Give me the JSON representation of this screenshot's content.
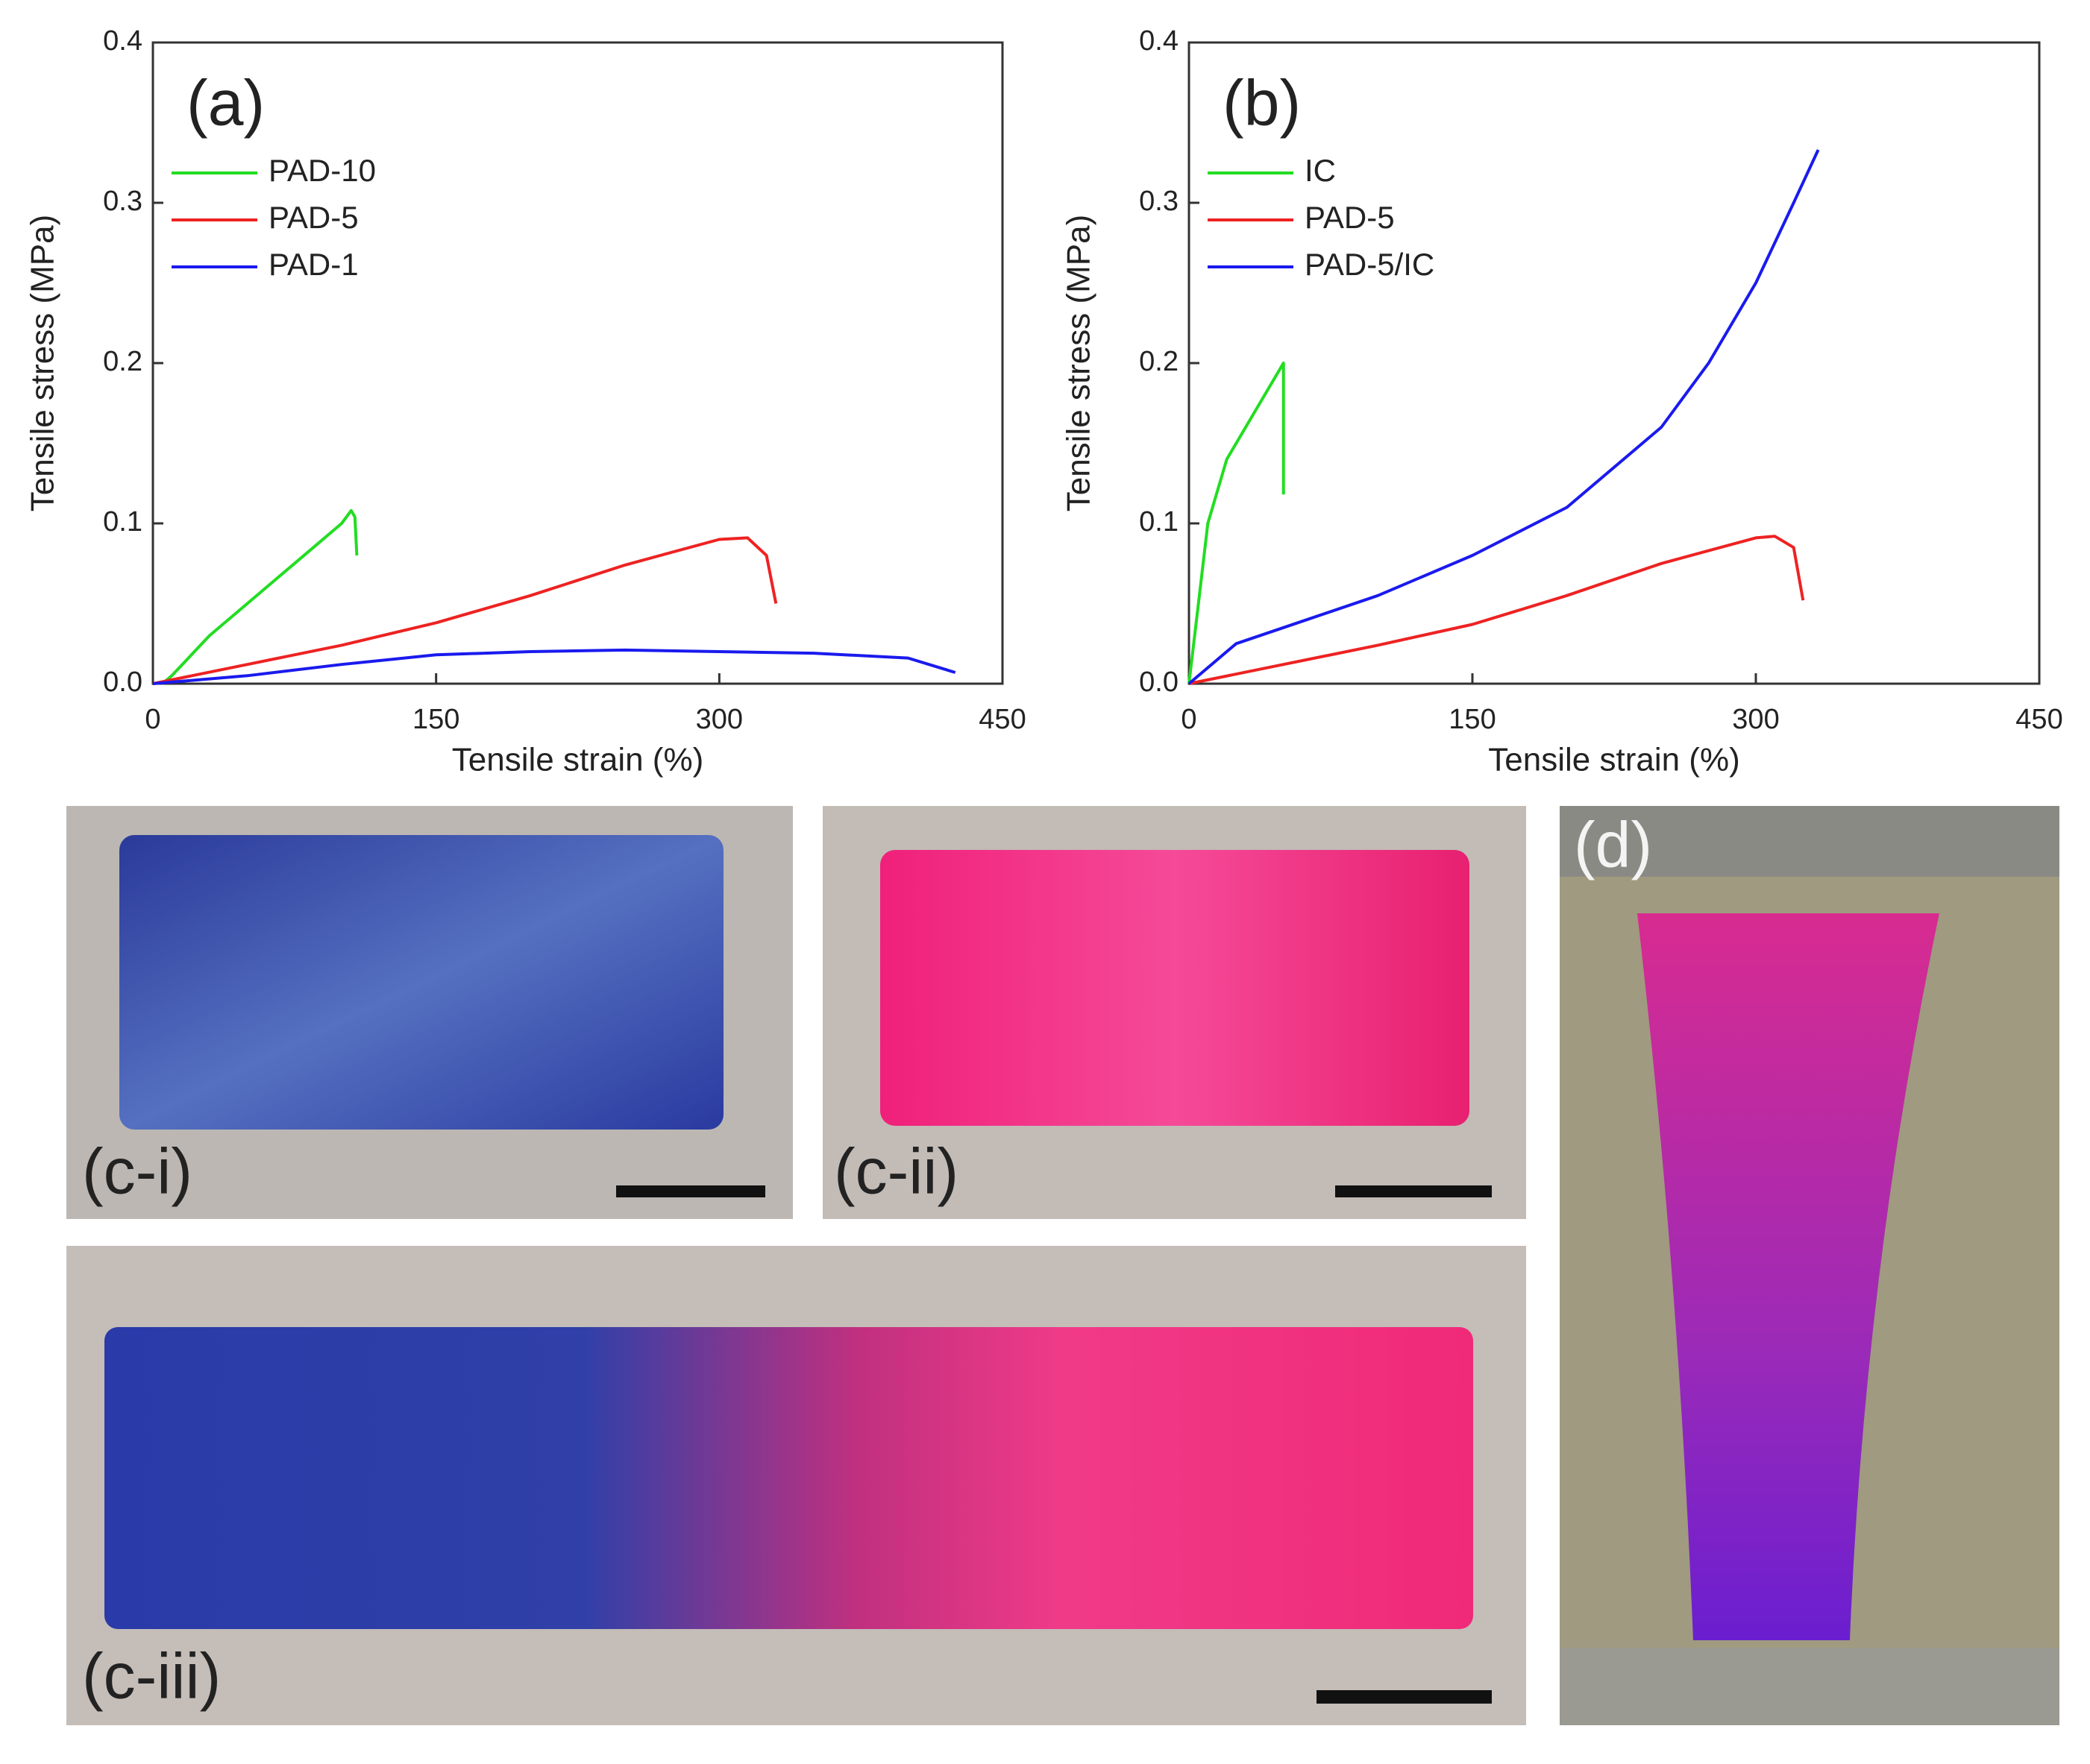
{
  "chart_data": [
    {
      "type": "line",
      "title": "(a)",
      "x_label": "Tensile strain (%)",
      "y_label": "Tensile stress (MPa)",
      "xlim": [
        0,
        450
      ],
      "ylim": [
        0,
        0.4
      ],
      "xticks": [
        0,
        150,
        300,
        450
      ],
      "yticks": [
        {
          "value": 0,
          "label": "0.0"
        },
        0.1,
        0.2,
        0.3,
        0.4
      ],
      "legend": "upper left",
      "series": [
        {
          "name": "PAD-10",
          "color": "#22dd22",
          "x": [
            5,
            10,
            30,
            50,
            75,
            100,
            105,
            107,
            108
          ],
          "values": [
            0,
            0.005,
            0.03,
            0.05,
            0.075,
            0.1,
            0.108,
            0.104,
            0.08
          ]
        },
        {
          "name": "PAD-5",
          "color": "#ee2222",
          "x": [
            0,
            50,
            100,
            150,
            200,
            250,
            300,
            315,
            325,
            330
          ],
          "values": [
            0,
            0.012,
            0.024,
            0.038,
            0.055,
            0.074,
            0.09,
            0.091,
            0.08,
            0.05
          ]
        },
        {
          "name": "PAD-1",
          "color": "#1a1aee",
          "x": [
            0,
            50,
            100,
            150,
            200,
            250,
            300,
            350,
            400,
            425
          ],
          "values": [
            0,
            0.005,
            0.012,
            0.018,
            0.02,
            0.021,
            0.02,
            0.019,
            0.016,
            0.007
          ]
        }
      ]
    },
    {
      "type": "line",
      "title": "(b)",
      "x_label": "Tensile strain (%)",
      "y_label": "Tensile stress (MPa)",
      "xlim": [
        0,
        450
      ],
      "ylim": [
        0,
        0.4
      ],
      "xticks": [
        0,
        150,
        300,
        450
      ],
      "yticks": [
        {
          "value": 0,
          "label": "0.0"
        },
        0.1,
        0.2,
        0.3,
        0.4
      ],
      "legend": "upper left",
      "series": [
        {
          "name": "IC",
          "color": "#22dd22",
          "x": [
            0,
            5,
            10,
            20,
            35,
            50,
            50
          ],
          "values": [
            0,
            0.05,
            0.1,
            0.14,
            0.17,
            0.2,
            0.118
          ]
        },
        {
          "name": "PAD-5",
          "color": "#ee2222",
          "x": [
            0,
            50,
            100,
            150,
            200,
            250,
            300,
            310,
            320,
            325
          ],
          "values": [
            0,
            0.012,
            0.024,
            0.037,
            0.055,
            0.075,
            0.091,
            0.092,
            0.085,
            0.052
          ]
        },
        {
          "name": "PAD-5/IC",
          "color": "#1a1aee",
          "x": [
            0,
            25,
            50,
            100,
            150,
            200,
            250,
            275,
            300,
            320,
            333
          ],
          "values": [
            0,
            0.025,
            0.035,
            0.055,
            0.08,
            0.11,
            0.16,
            0.2,
            0.25,
            0.3,
            0.333
          ]
        }
      ]
    }
  ],
  "photo_labels": [
    "(c-i)",
    "(c-ii)",
    "(c-iii)",
    "(d)"
  ]
}
